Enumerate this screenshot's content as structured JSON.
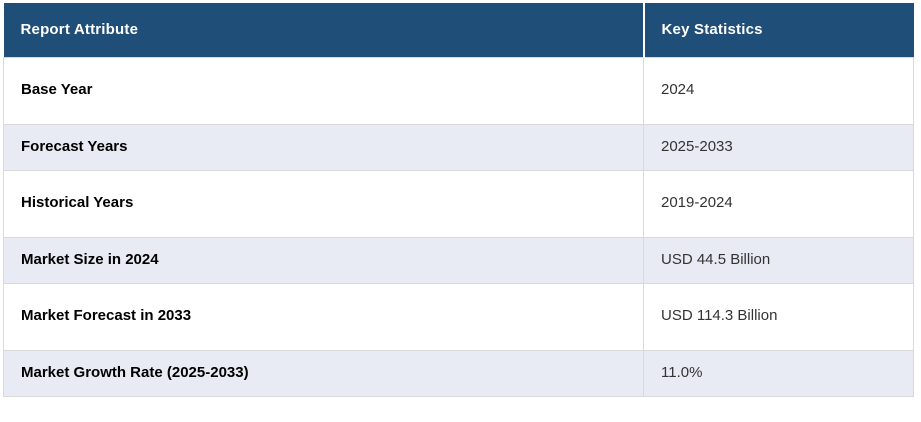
{
  "chart_data": {
    "type": "table",
    "columns": [
      "Report Attribute",
      "Key Statistics"
    ],
    "rows": [
      [
        "Base Year",
        "2024"
      ],
      [
        "Forecast Years",
        "2025-2033"
      ],
      [
        "Historical Years",
        "2019-2024"
      ],
      [
        "Market Size in 2024",
        "USD 44.5 Billion"
      ],
      [
        "Market Forecast in 2033",
        "USD 114.3 Billion"
      ],
      [
        "Market Growth Rate (2025-2033)",
        "11.0%"
      ]
    ]
  },
  "colors": {
    "header_bg": "#1f4e79",
    "header_text": "#ffffff",
    "row_bg": "#ffffff",
    "row_alt_bg": "#e8eaf4",
    "border": "#d9d9d9",
    "attribute_text": "#000000",
    "value_text": "#333333"
  }
}
